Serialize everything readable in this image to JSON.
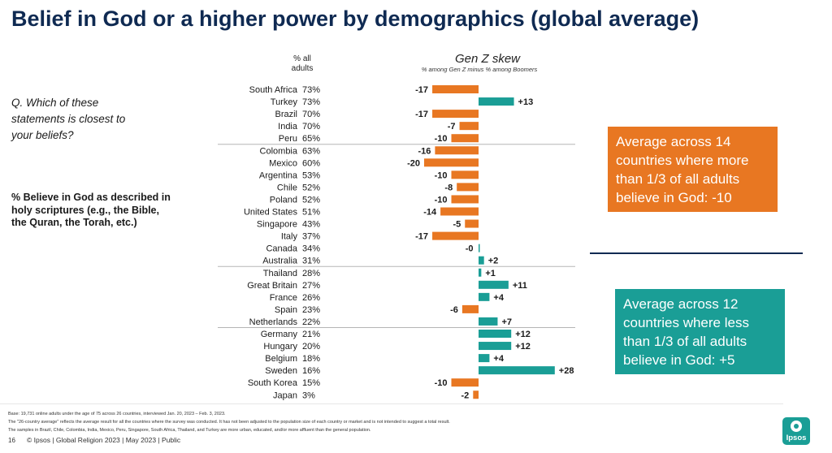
{
  "title": "Belief in God or a higher power by demographics (global average)",
  "question": "Q. Which of these statements is closest to your beliefs?",
  "measure": "% Believe in God as described in holy scriptures (e.g., the Bible, the Quran, the Torah, etc.)",
  "pct_header": "% all adults",
  "callouts": {
    "above": "Average across 14 countries where more than 1/3 of all adults believe in God: -10",
    "below": "Average across 12 countries where less than 1/3 of all adults believe in God: +5"
  },
  "colors": {
    "negative": "#e87722",
    "positive": "#1a9e96",
    "title": "#0f2a52"
  },
  "footnotes": [
    "Base: 19,731 online adults under the age of 75 across 26 countries, interviewed Jan. 20, 2023 – Feb. 3, 2023.",
    "The \"26-country average\" reflects the average result for all the countries where the survey was conducted. It has not been adjusted to the population size of each country or market and is not intended to suggest a total result.",
    "The samples in Brazil, Chile, Colombia, India, Mexico, Peru, Singapore, South Africa, Thailand, and Turkey are more urban, educated, and/or more affluent than the general population."
  ],
  "footer": {
    "page": "16",
    "text": "© Ipsos | Global Religion 2023 | May 2023 | Public",
    "logo": "Ipsos"
  },
  "chart_data": {
    "type": "bar",
    "orientation": "horizontal",
    "title": "Gen Z skew",
    "subtitle": "% among Gen Z minus % among Boomers",
    "categories": [
      "South Africa",
      "Turkey",
      "Brazil",
      "India",
      "Peru",
      "Colombia",
      "Mexico",
      "Argentina",
      "Chile",
      "Poland",
      "United States",
      "Singapore",
      "Italy",
      "Canada",
      "Australia",
      "Thailand",
      "Great Britain",
      "France",
      "Spain",
      "Netherlands",
      "Germany",
      "Hungary",
      "Belgium",
      "Sweden",
      "South Korea",
      "Japan"
    ],
    "pct_all_adults": [
      "73%",
      "73%",
      "70%",
      "70%",
      "65%",
      "63%",
      "60%",
      "53%",
      "52%",
      "52%",
      "51%",
      "43%",
      "37%",
      "34%",
      "31%",
      "28%",
      "27%",
      "26%",
      "23%",
      "22%",
      "21%",
      "20%",
      "18%",
      "16%",
      "15%",
      "3%"
    ],
    "values": [
      -17,
      13,
      -17,
      -7,
      -10,
      -16,
      -20,
      -10,
      -8,
      -10,
      -14,
      -5,
      -17,
      0,
      2,
      1,
      11,
      4,
      -6,
      7,
      12,
      12,
      4,
      28,
      -10,
      -2
    ],
    "value_labels": [
      "-17",
      "+13",
      "-17",
      "-7",
      "-10",
      "-16",
      "-20",
      "-10",
      "-8",
      "-10",
      "-14",
      "-5",
      "-17",
      "-0",
      "+2",
      "+1",
      "+11",
      "+4",
      "-6",
      "+7",
      "+12",
      "+12",
      "+4",
      "+28",
      "-10",
      "-2"
    ],
    "group_dividers_after": [
      "Peru",
      "Australia",
      "Netherlands"
    ]
  }
}
